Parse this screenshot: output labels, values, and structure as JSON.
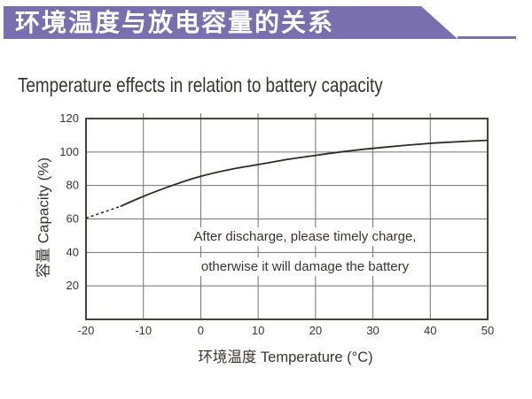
{
  "banner": {
    "title": "环境温度与放电容量的关系"
  },
  "chart_title": "Temperature effects in relation to battery capacity",
  "chart_data": {
    "type": "line",
    "title": "Temperature effects in relation to battery capacity",
    "xlabel": "环境温度 Temperature (°C)",
    "ylabel": "容量 Capacity (%)",
    "xlim": [
      -20,
      50
    ],
    "ylim": [
      0,
      120
    ],
    "x_ticks": [
      -20,
      -10,
      0,
      10,
      20,
      30,
      40,
      50
    ],
    "y_ticks": [
      20,
      40,
      60,
      80,
      100,
      120
    ],
    "grid": true,
    "legend_position": "none",
    "series": [
      {
        "name": "capacity",
        "x": [
          -20,
          -14,
          -10,
          -5,
          0,
          5,
          10,
          15,
          20,
          25,
          30,
          35,
          40,
          45,
          50
        ],
        "y": [
          60.5,
          67.5,
          73.5,
          80,
          85.5,
          89.5,
          92.5,
          95.5,
          98,
          100.3,
          102.2,
          103.8,
          105.2,
          106.2,
          107
        ],
        "dashed_until_x": -14
      }
    ],
    "annotations": [
      "After discharge, please timely charge,",
      "otherwise it will damage the battery"
    ]
  },
  "colors": {
    "banner": "#7a6fae",
    "grid": "#757170",
    "axis": "#44403d",
    "text": "#3a3431",
    "curve": "#2d2926"
  }
}
